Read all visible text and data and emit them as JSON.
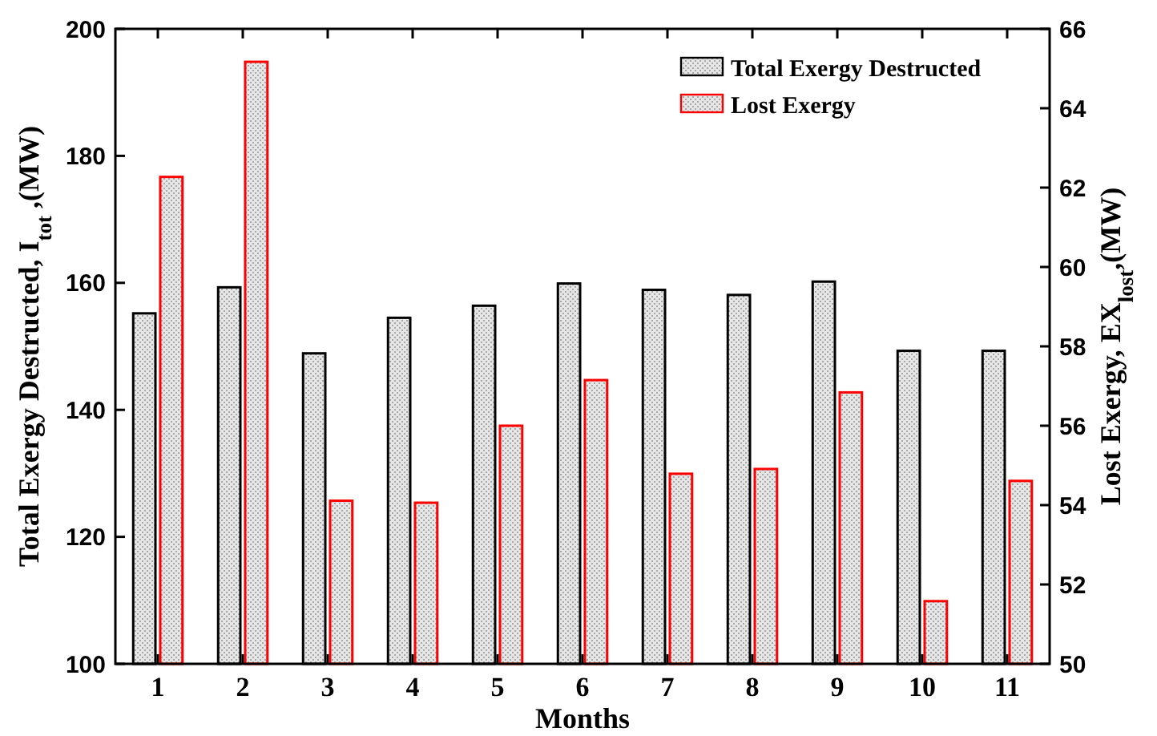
{
  "chart_data": {
    "type": "bar",
    "xlabel": "Months",
    "ylabel": "Total Exergy Destructed, I$_{tot}$ ,(MW)",
    "y2label": "Lost Exergy, EX$_{lost}$,(MW)",
    "categories": [
      "1",
      "2",
      "3",
      "4",
      "5",
      "6",
      "7",
      "8",
      "9",
      "10",
      "11"
    ],
    "series": [
      {
        "name": "Total Exergy Destructed",
        "color": "#000000",
        "values": [
          155.2,
          159.3,
          148.9,
          154.5,
          156.4,
          159.9,
          158.9,
          158.1,
          160.2,
          149.3,
          149.3
        ]
      },
      {
        "name": "Lost Exergy",
        "color": "#ff0000",
        "axis": "y2",
        "values": [
          62.27,
          65.17,
          54.11,
          54.06,
          56.0,
          57.15,
          54.79,
          54.91,
          56.84,
          51.58,
          54.61
        ]
      }
    ],
    "ylim": [
      100,
      200
    ],
    "yticks": [
      100,
      120,
      140,
      160,
      180,
      200
    ],
    "y2lim": [
      50,
      66
    ],
    "y2ticks": [
      50,
      52,
      54,
      56,
      58,
      60,
      62,
      64,
      66
    ],
    "legend": "top right",
    "grid": false
  }
}
